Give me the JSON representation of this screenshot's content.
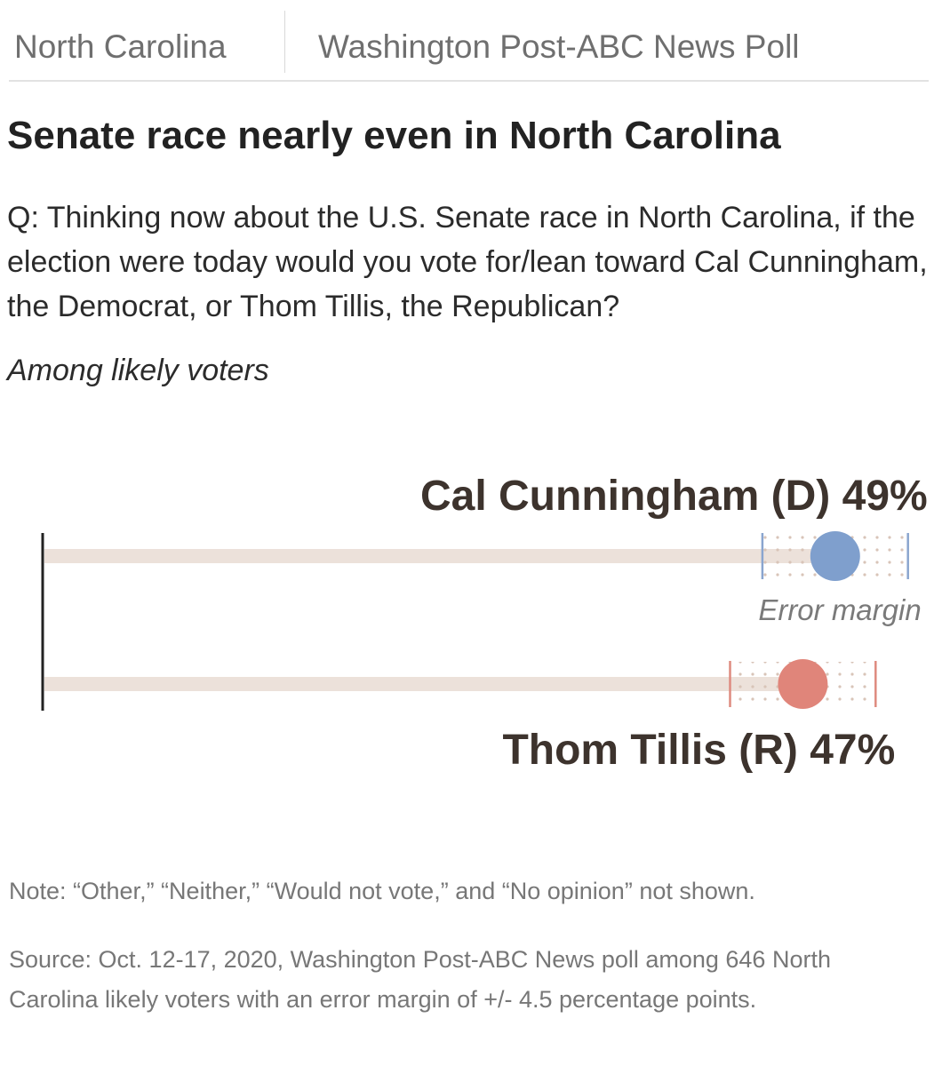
{
  "header": {
    "kicker_left": "North Carolina",
    "kicker_right": "Washington Post-ABC News Poll"
  },
  "title": "Senate race nearly even in North Carolina",
  "question": "Q: Thinking now about the U.S. Senate race in North Carolina, if the election were today would you vote for/lean toward Cal Cunningham, the Democrat, or Thom Tillis, the Republican?",
  "population": "Among likely voters",
  "chart_data": {
    "type": "dot-range",
    "xlim": [
      0,
      55
    ],
    "error_margin": 4.5,
    "error_margin_label": "Error margin",
    "series": [
      {
        "name": "Cal Cunningham (D)",
        "label": "Cal Cunningham (D) 49%",
        "value": 49,
        "color": "#7f9fcd",
        "tick_color": "#8aa5cf"
      },
      {
        "name": "Thom Tillis (R)",
        "label": "Thom Tillis (R) 47%",
        "value": 47,
        "color": "#e0857a",
        "tick_color": "#de8a7f"
      }
    ],
    "colors": {
      "track": "#ece1da",
      "dots": "#d8c4b8",
      "axis": "#222222",
      "label": "#3d332d",
      "annotation": "#7a7a7a"
    }
  },
  "note": "Note: “Other,” “Neither,” “Would not vote,” and “No opinion” not shown.",
  "source": "Source: Oct. 12-17, 2020, Washington Post-ABC News poll among 646 North Carolina likely voters with an error margin of +/- 4.5 percentage points."
}
